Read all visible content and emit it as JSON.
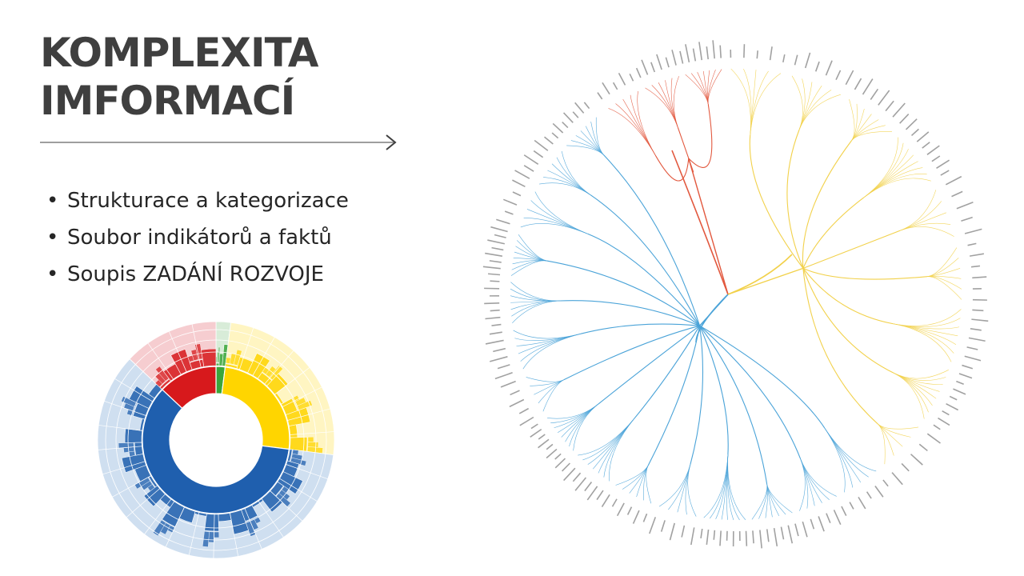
{
  "slide": {
    "title_line1": "KOMPLEXITA",
    "title_line2": "IMFORMACÍ",
    "bullets": [
      "Strukturace a kategorizace",
      "Soubor indikátorů a faktů",
      "Soupis ZADÁNÍ ROZVOJE"
    ]
  },
  "colors": {
    "title": "#3f3f3f",
    "text": "#262626",
    "divider": "#7f7f7f",
    "blue": "#1f5fae",
    "blue_light": "#cfdff0",
    "red": "#d7191c",
    "red_light": "#f6cdd0",
    "yellow": "#ffd500",
    "yellow_light": "#fff5c2",
    "green": "#3aa63a",
    "tree_blue": "#4aa3d8",
    "tree_red": "#e2583e",
    "tree_yellow": "#f2d14b",
    "leaf_text": "#555555"
  },
  "sunburst": {
    "segments": [
      {
        "name": "Blue",
        "color": "blue",
        "fraction": 0.6
      },
      {
        "name": "Red",
        "color": "red",
        "fraction": 0.13
      },
      {
        "name": "Green",
        "color": "green",
        "fraction": 0.02
      },
      {
        "name": "Yellow",
        "color": "yellow",
        "fraction": 0.25
      }
    ]
  },
  "tree": {
    "groups": [
      {
        "name": "Blue",
        "color": "tree_blue",
        "fraction": 0.63,
        "branches": 15
      },
      {
        "name": "Red",
        "color": "tree_red",
        "fraction": 0.1,
        "branches": 3
      },
      {
        "name": "Yellow",
        "color": "tree_yellow",
        "fraction": 0.27,
        "branches": 9
      }
    ]
  }
}
